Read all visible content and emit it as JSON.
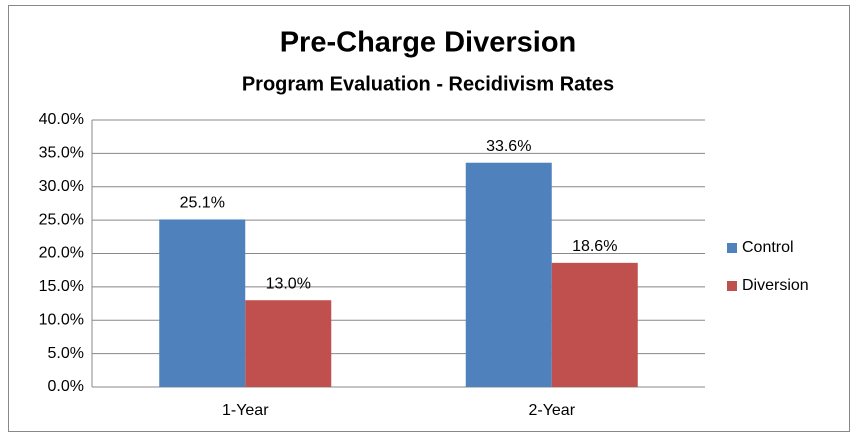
{
  "chart_data": {
    "type": "bar",
    "title": "Pre-Charge Diversion",
    "subtitle": "Program Evaluation - Recidivism Rates",
    "categories": [
      "1-Year",
      "2-Year"
    ],
    "series": [
      {
        "name": "Control",
        "color": "#4f81bd",
        "values": [
          25.1,
          33.6
        ],
        "value_labels": [
          "25.1%",
          "33.6%"
        ]
      },
      {
        "name": "Diversion",
        "color": "#c0504d",
        "values": [
          13.0,
          18.6
        ],
        "value_labels": [
          "13.0%",
          "18.6%"
        ]
      }
    ],
    "ylim": [
      0,
      40
    ],
    "yticks": [
      {
        "value": 0,
        "label": "0.0%"
      },
      {
        "value": 5,
        "label": "5.0%"
      },
      {
        "value": 10,
        "label": "10.0%"
      },
      {
        "value": 15,
        "label": "15.0%"
      },
      {
        "value": 20,
        "label": "20.0%"
      },
      {
        "value": 25,
        "label": "25.0%"
      },
      {
        "value": 30,
        "label": "30.0%"
      },
      {
        "value": 35,
        "label": "35.0%"
      },
      {
        "value": 40,
        "label": "40.0%"
      }
    ],
    "grid": true,
    "legend": "right"
  }
}
